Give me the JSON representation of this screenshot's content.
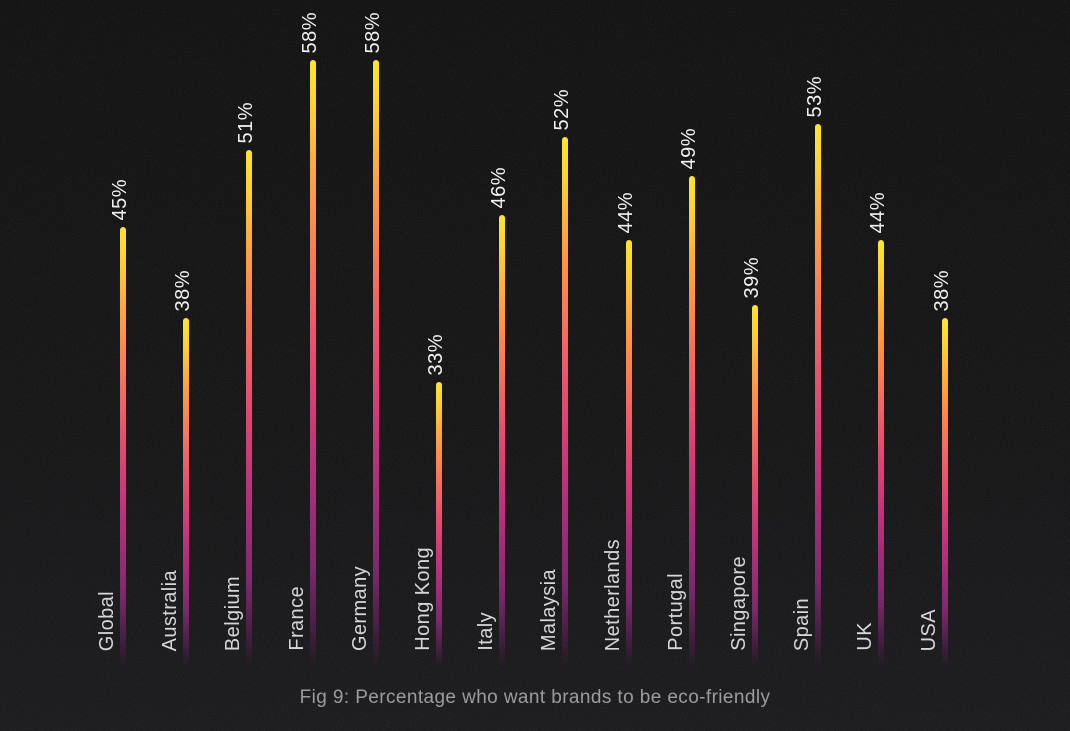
{
  "background": {
    "base_color": "#0c0c0d",
    "texture": "grain-noise"
  },
  "chart_data": {
    "type": "bar",
    "subtype": "thin-gradient-lollipop-bars",
    "title": "Fig 9: Percentage who want brands to be eco-friendly",
    "categories": [
      "Global",
      "Australia",
      "Belgium",
      "France",
      "Germany",
      "Hong Kong",
      "Italy",
      "Malaysia",
      "Netherlands",
      "Portugal",
      "Singapore",
      "Spain",
      "UK",
      "USA"
    ],
    "values": [
      45,
      38,
      51,
      58,
      58,
      33,
      46,
      52,
      44,
      49,
      39,
      53,
      44,
      38
    ],
    "value_labels": [
      "45%",
      "38%",
      "51%",
      "58%",
      "58%",
      "33%",
      "46%",
      "52%",
      "44%",
      "49%",
      "39%",
      "53%",
      "44%",
      "38%"
    ],
    "xlabel": "",
    "ylabel": "",
    "ylim": [
      0,
      60
    ],
    "grid": false,
    "legend_position": "none",
    "label_rotation_degrees": 90,
    "bar_gradient_top_to_bottom": [
      "#ffe51e",
      "#ffcf26",
      "#ffac2d",
      "#ff8a3c",
      "#f66a52",
      "#ec4b63",
      "#d8356d",
      "#bc2873",
      "#9a2071",
      "#741d64",
      "#3a1136"
    ],
    "bar_fade_to_transparent_at_bottom": true,
    "value_label_color": "#f4f2ef",
    "category_label_color": "#d7d4d6",
    "caption_color": "#9b9c9f"
  }
}
